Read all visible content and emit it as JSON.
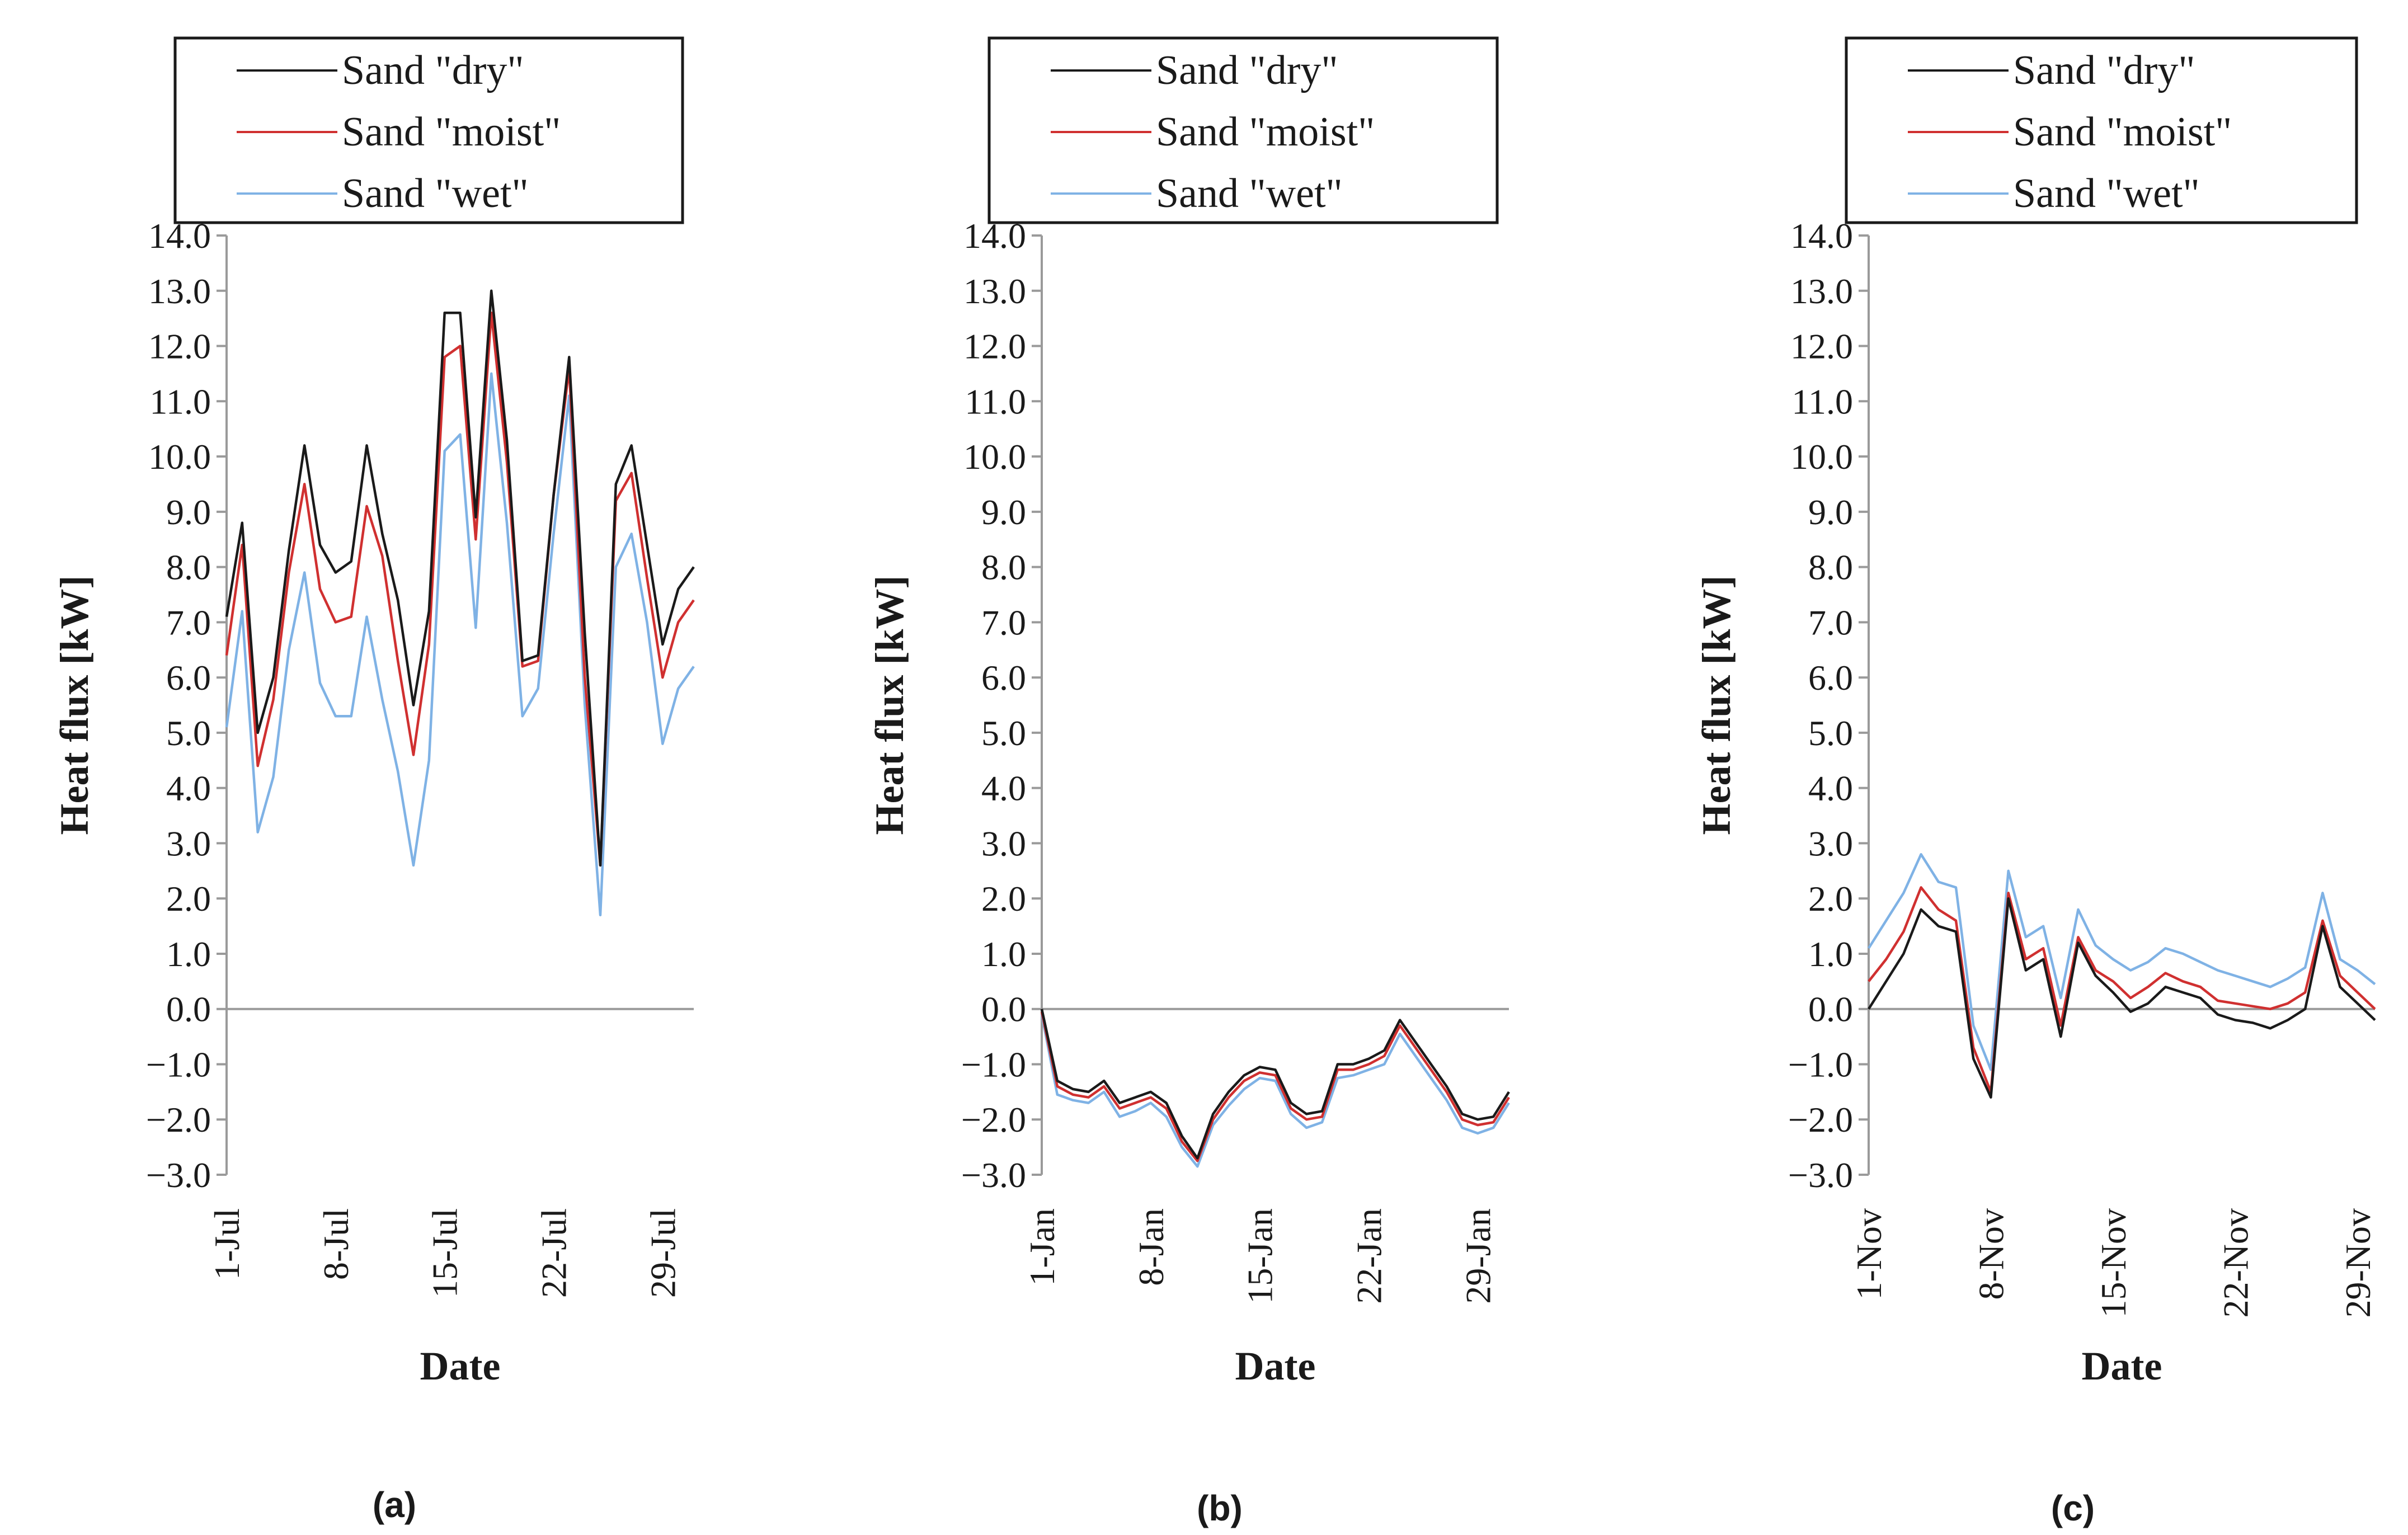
{
  "figure": {
    "panel_labels": [
      "(a)",
      "(b)",
      "(c)"
    ]
  },
  "colors": {
    "dry": "#1a1a1a",
    "moist": "#d03030",
    "wet": "#7fb2e5"
  },
  "chart_data": [
    {
      "type": "line",
      "title": "",
      "panel_label": "(a)",
      "xlabel": "Date",
      "ylabel": "Heat flux [kW]",
      "ylim": [
        -3.0,
        14.0
      ],
      "ytick_step": 1.0,
      "yticks": [
        "14.0",
        "13.0",
        "12.0",
        "11.0",
        "10.0",
        "9.0",
        "8.0",
        "7.0",
        "6.0",
        "5.0",
        "4.0",
        "3.0",
        "2.0",
        "1.0",
        "0.0",
        "−1.0",
        "−2.0",
        "−3.0"
      ],
      "x_days": 31,
      "xtick_labels": [
        "1-Jul",
        "8-Jul",
        "15-Jul",
        "22-Jul",
        "29-Jul"
      ],
      "xtick_days": [
        1,
        8,
        15,
        22,
        29
      ],
      "legend": [
        "Sand \"dry\"",
        "Sand \"moist\"",
        "Sand \"wet\""
      ],
      "series": [
        {
          "name": "Sand \"dry\"",
          "color_key": "dry",
          "values": [
            7.1,
            8.8,
            5.0,
            6.0,
            8.3,
            10.2,
            8.4,
            7.9,
            8.1,
            10.2,
            8.6,
            7.4,
            5.5,
            7.2,
            12.6,
            12.6,
            8.9,
            13.0,
            10.3,
            6.3,
            6.4,
            9.3,
            11.8,
            6.8,
            2.6,
            9.5,
            10.2,
            8.4,
            6.6,
            7.6,
            8.0
          ]
        },
        {
          "name": "Sand \"moist\"",
          "color_key": "moist",
          "values": [
            6.4,
            8.4,
            4.4,
            5.6,
            7.9,
            9.5,
            7.6,
            7.0,
            7.1,
            9.1,
            8.2,
            6.3,
            4.6,
            6.6,
            11.8,
            12.0,
            8.5,
            12.6,
            9.9,
            6.2,
            6.3,
            9.3,
            11.6,
            6.0,
            2.6,
            9.2,
            9.7,
            7.8,
            6.0,
            7.0,
            7.4
          ]
        },
        {
          "name": "Sand \"wet\"",
          "color_key": "wet",
          "values": [
            5.1,
            7.2,
            3.2,
            4.2,
            6.5,
            7.9,
            5.9,
            5.3,
            5.3,
            7.1,
            5.6,
            4.3,
            2.6,
            4.5,
            10.1,
            10.4,
            6.9,
            11.5,
            8.8,
            5.3,
            5.8,
            8.6,
            11.1,
            5.5,
            1.7,
            8.0,
            8.6,
            7.0,
            4.8,
            5.8,
            6.2
          ]
        }
      ]
    },
    {
      "type": "line",
      "title": "",
      "panel_label": "(b)",
      "xlabel": "Date",
      "ylabel": "Heat flux [kW]",
      "ylim": [
        -3.0,
        14.0
      ],
      "ytick_step": 1.0,
      "yticks": [
        "14.0",
        "13.0",
        "12.0",
        "11.0",
        "10.0",
        "9.0",
        "8.0",
        "7.0",
        "6.0",
        "5.0",
        "4.0",
        "3.0",
        "2.0",
        "1.0",
        "0.0",
        "−1.0",
        "−2.0",
        "−3.0"
      ],
      "x_days": 31,
      "xtick_labels": [
        "1-Jan",
        "8-Jan",
        "15-Jan",
        "22-Jan",
        "29-Jan"
      ],
      "xtick_days": [
        1,
        8,
        15,
        22,
        29
      ],
      "legend": [
        "Sand \"dry\"",
        "Sand \"moist\"",
        "Sand \"wet\""
      ],
      "series": [
        {
          "name": "Sand \"dry\"",
          "color_key": "dry",
          "values": [
            0.0,
            -1.3,
            -1.45,
            -1.5,
            -1.3,
            -1.7,
            -1.6,
            -1.5,
            -1.7,
            -2.3,
            -2.7,
            -1.9,
            -1.5,
            -1.2,
            -1.05,
            -1.1,
            -1.7,
            -1.9,
            -1.85,
            -1.0,
            -1.0,
            -0.9,
            -0.75,
            -0.2,
            -0.6,
            -1.0,
            -1.4,
            -1.9,
            -2.0,
            -1.95,
            -1.5
          ]
        },
        {
          "name": "Sand \"moist\"",
          "color_key": "moist",
          "values": [
            -0.05,
            -1.4,
            -1.55,
            -1.6,
            -1.4,
            -1.8,
            -1.7,
            -1.6,
            -1.8,
            -2.4,
            -2.75,
            -2.0,
            -1.6,
            -1.3,
            -1.15,
            -1.2,
            -1.8,
            -2.0,
            -1.95,
            -1.1,
            -1.1,
            -1.0,
            -0.85,
            -0.3,
            -0.7,
            -1.1,
            -1.5,
            -2.0,
            -2.1,
            -2.05,
            -1.6
          ]
        },
        {
          "name": "Sand \"wet\"",
          "color_key": "wet",
          "values": [
            -0.1,
            -1.55,
            -1.65,
            -1.7,
            -1.5,
            -1.95,
            -1.85,
            -1.7,
            -1.95,
            -2.5,
            -2.85,
            -2.1,
            -1.75,
            -1.45,
            -1.25,
            -1.3,
            -1.9,
            -2.15,
            -2.05,
            -1.25,
            -1.2,
            -1.1,
            -1.0,
            -0.45,
            -0.85,
            -1.25,
            -1.65,
            -2.15,
            -2.25,
            -2.15,
            -1.7
          ]
        }
      ]
    },
    {
      "type": "line",
      "title": "",
      "panel_label": "(c)",
      "xlabel": "Date",
      "ylabel": "Heat flux [kW]",
      "ylim": [
        -3.0,
        14.0
      ],
      "ytick_step": 1.0,
      "yticks": [
        "14.0",
        "13.0",
        "12.0",
        "11.0",
        "10.0",
        "9.0",
        "8.0",
        "7.0",
        "6.0",
        "5.0",
        "4.0",
        "3.0",
        "2.0",
        "1.0",
        "0.0",
        "−1.0",
        "−2.0",
        "−3.0"
      ],
      "x_days": 30,
      "xtick_labels": [
        "1-Nov",
        "8-Nov",
        "15-Nov",
        "22-Nov",
        "29-Nov"
      ],
      "xtick_days": [
        1,
        8,
        15,
        22,
        29
      ],
      "legend": [
        "Sand \"dry\"",
        "Sand \"moist\"",
        "Sand \"wet\""
      ],
      "series": [
        {
          "name": "Sand \"dry\"",
          "color_key": "dry",
          "values": [
            0.0,
            0.5,
            1.0,
            1.8,
            1.5,
            1.4,
            -0.9,
            -1.6,
            2.0,
            0.7,
            0.9,
            -0.5,
            1.2,
            0.6,
            0.3,
            -0.05,
            0.1,
            0.4,
            0.3,
            0.2,
            -0.1,
            -0.2,
            -0.25,
            -0.35,
            -0.2,
            0.0,
            1.5,
            0.4,
            0.1,
            -0.2
          ]
        },
        {
          "name": "Sand \"moist\"",
          "color_key": "moist",
          "values": [
            0.5,
            0.9,
            1.4,
            2.2,
            1.8,
            1.6,
            -0.7,
            -1.5,
            2.1,
            0.9,
            1.1,
            -0.3,
            1.3,
            0.7,
            0.5,
            0.2,
            0.4,
            0.65,
            0.5,
            0.4,
            0.15,
            0.1,
            0.05,
            0.0,
            0.1,
            0.3,
            1.6,
            0.6,
            0.3,
            0.0
          ]
        },
        {
          "name": "Sand \"wet\"",
          "color_key": "wet",
          "values": [
            1.1,
            1.6,
            2.1,
            2.8,
            2.3,
            2.2,
            -0.3,
            -1.1,
            2.5,
            1.3,
            1.5,
            0.2,
            1.8,
            1.15,
            0.9,
            0.7,
            0.85,
            1.1,
            1.0,
            0.85,
            0.7,
            0.6,
            0.5,
            0.4,
            0.55,
            0.75,
            2.1,
            0.9,
            0.7,
            0.45
          ]
        }
      ]
    }
  ]
}
